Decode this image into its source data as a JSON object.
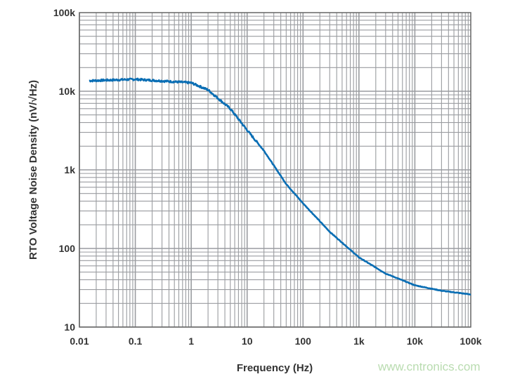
{
  "chart_data": {
    "type": "line",
    "title": "",
    "xlabel": "Frequency (Hz)",
    "ylabel": "RTO Voltage Noise Density (nV/√Hz)",
    "xscale": "log",
    "yscale": "log",
    "xlim": [
      0.01,
      100000
    ],
    "ylim": [
      10,
      100000
    ],
    "grid": true,
    "xticks": [
      0.01,
      0.1,
      1,
      10,
      100,
      1000,
      10000,
      100000
    ],
    "xtick_labels": [
      "0.01",
      "0.1",
      "1",
      "10",
      "100",
      "1k",
      "10k",
      "100k"
    ],
    "yticks": [
      10,
      100,
      1000,
      10000,
      100000
    ],
    "ytick_labels": [
      "10",
      "100",
      "1k",
      "10k",
      "100k"
    ],
    "series": [
      {
        "color": "#0a6eb4",
        "x": [
          0.015,
          0.1,
          1,
          2,
          5,
          10,
          20,
          50,
          100,
          300,
          1000,
          3000,
          10000,
          30000,
          100000
        ],
        "y": [
          13600,
          14200,
          12800,
          10400,
          6000,
          3200,
          1750,
          660,
          375,
          163,
          77,
          48,
          34,
          29,
          26
        ]
      }
    ]
  },
  "watermark": "www.cntronics.com"
}
